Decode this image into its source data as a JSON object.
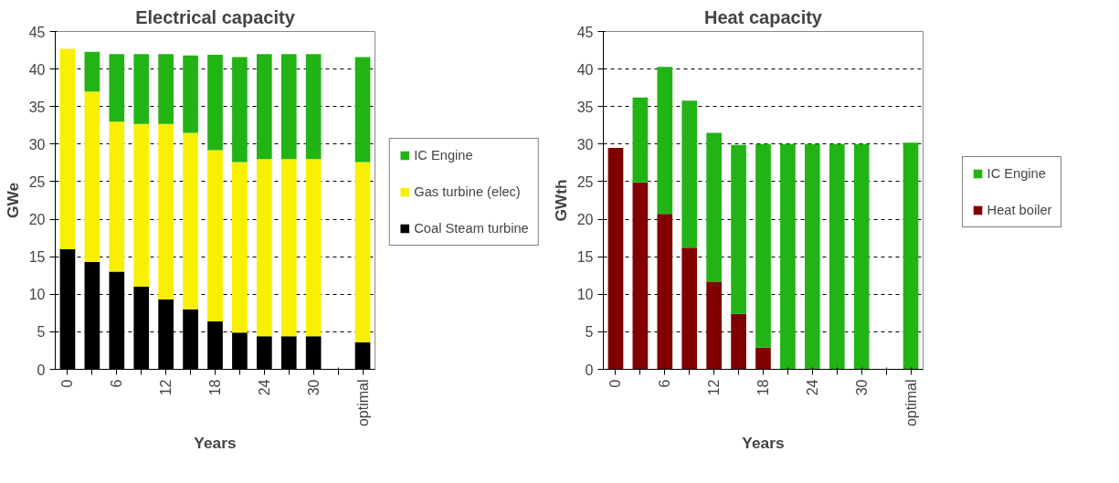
{
  "chart_data": [
    {
      "type": "bar",
      "title": "Electrical capacity",
      "xlabel": "Years",
      "ylabel": "GWe",
      "stacked": true,
      "categories": [
        "0",
        null,
        "6",
        null,
        "12",
        null,
        "18",
        null,
        "24",
        null,
        "30",
        null,
        "optimal"
      ],
      "series": [
        {
          "name": "Coal Steam turbine",
          "color": "#000000",
          "values": [
            16.0,
            14.3,
            13.0,
            11.0,
            9.3,
            8.0,
            6.4,
            4.9,
            4.4,
            4.4,
            4.4,
            null,
            3.6
          ]
        },
        {
          "name": "Gas turbine (elec)",
          "color": "#f8f000",
          "values": [
            26.7,
            22.7,
            20.0,
            21.7,
            23.4,
            23.5,
            22.8,
            22.7,
            23.6,
            23.6,
            23.6,
            null,
            24.0
          ]
        },
        {
          "name": "IC Engine",
          "color": "#22b414",
          "values": [
            null,
            5.3,
            9.0,
            9.3,
            9.3,
            10.3,
            12.7,
            14.0,
            14.0,
            14.0,
            14.0,
            null,
            14.0
          ]
        }
      ],
      "ylim": [
        0,
        45
      ],
      "yticks": [
        0,
        5,
        10,
        15,
        20,
        25,
        30,
        35,
        40,
        45
      ],
      "grid": "y",
      "legend": "right"
    },
    {
      "type": "bar",
      "title": "Heat capacity",
      "xlabel": "Years",
      "ylabel": "GWth",
      "stacked": true,
      "categories": [
        "0",
        null,
        "6",
        null,
        "12",
        null,
        "18",
        null,
        "24",
        null,
        "30",
        null,
        "optimal"
      ],
      "series": [
        {
          "name": "Heat boiler",
          "color": "#800000",
          "values": [
            29.5,
            24.9,
            20.7,
            16.2,
            11.6,
            7.4,
            2.9,
            null,
            null,
            null,
            null,
            null,
            null
          ]
        },
        {
          "name": "IC Engine",
          "color": "#22b414",
          "values": [
            null,
            11.3,
            19.6,
            19.6,
            19.9,
            22.5,
            27.1,
            30.0,
            30.0,
            30.0,
            30.0,
            null,
            30.2
          ]
        }
      ],
      "ylim": [
        0,
        45
      ],
      "yticks": [
        0,
        5,
        10,
        15,
        20,
        25,
        30,
        35,
        40,
        45
      ],
      "grid": "y",
      "legend": "right"
    }
  ]
}
